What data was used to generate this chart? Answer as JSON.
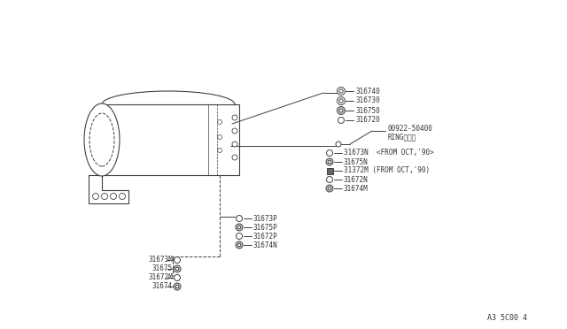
{
  "bg_color": "#ffffff",
  "line_color": "#404040",
  "text_color": "#333333",
  "font_size": 5.5,
  "title_code": "A3 5C00 4",
  "right_labels": [
    "316740",
    "316730",
    "316750",
    "316720"
  ],
  "mid_label1": "00922-50400",
  "mid_label2": "RINGリング",
  "n_labels": [
    "31673N  <FROM OCT,'90>",
    "31675N",
    "31372M (FROM OCT,'90)",
    "31672N",
    "31674M"
  ],
  "p_labels": [
    "31673P",
    "31675P",
    "31672P",
    "31674N"
  ],
  "m_labels": [
    "31673M",
    "31675",
    "31672M",
    "31674"
  ]
}
